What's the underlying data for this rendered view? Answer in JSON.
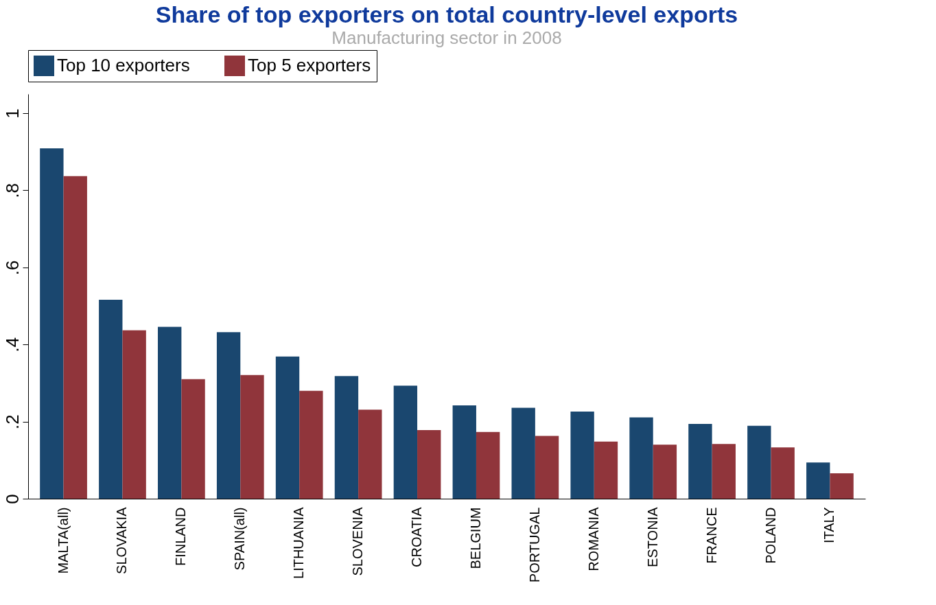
{
  "chart_data": {
    "type": "bar",
    "title": "Share of top exporters on total country-level exports",
    "subtitle": "Manufacturing sector in 2008",
    "categories": [
      "MALTA(all)",
      "SLOVAKIA",
      "FINLAND",
      "SPAIN(all)",
      "LITHUANIA",
      "SLOVENIA",
      "CROATIA",
      "BELGIUM",
      "PORTUGAL",
      "ROMANIA",
      "ESTONIA",
      "FRANCE",
      "POLAND",
      "ITALY"
    ],
    "series": [
      {
        "name": "Top 10 exporters",
        "color": "#1a476f",
        "values": [
          0.909,
          0.516,
          0.446,
          0.432,
          0.369,
          0.318,
          0.293,
          0.242,
          0.236,
          0.226,
          0.211,
          0.194,
          0.189,
          0.094
        ]
      },
      {
        "name": "Top 5 exporters",
        "color": "#90353b",
        "values": [
          0.837,
          0.437,
          0.31,
          0.321,
          0.28,
          0.231,
          0.178,
          0.173,
          0.163,
          0.148,
          0.14,
          0.142,
          0.133,
          0.066
        ]
      }
    ],
    "ylim": [
      0,
      1.05
    ],
    "yticks": [
      0,
      {
        "value": 0.2,
        "label": ".2"
      },
      {
        "value": 0.4,
        "label": ".4"
      },
      {
        "value": 0.6,
        "label": ".6"
      },
      {
        "value": 0.8,
        "label": ".8"
      },
      1
    ],
    "grid": false,
    "legend": "top"
  }
}
